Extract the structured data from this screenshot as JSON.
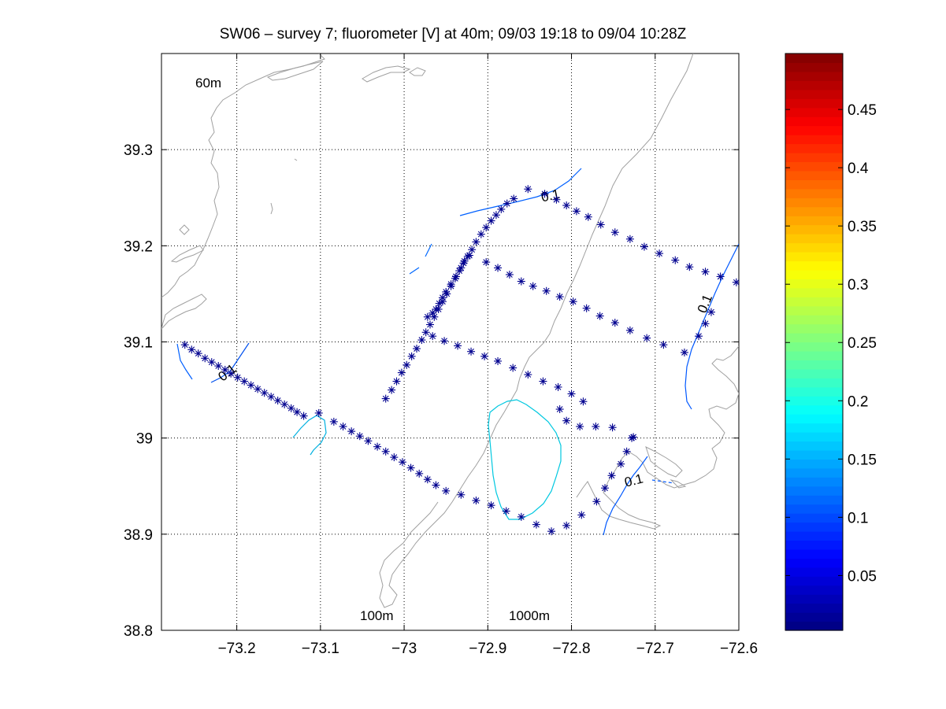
{
  "chart_data": {
    "type": "scatter",
    "title": "SW06 – survey 7; fluorometer [V] at 40m; 09/03 19:18 to 09/04 10:28Z",
    "xlabel": "",
    "ylabel": "",
    "xlim": [
      -73.29,
      -72.6
    ],
    "ylim": [
      38.8,
      39.4
    ],
    "xticks": [
      -73.2,
      -73.1,
      -73.0,
      -72.9,
      -72.8,
      -72.7,
      -72.6
    ],
    "xtick_labels": [
      "−73.2",
      "−73.1",
      "−73",
      "−72.9",
      "−72.8",
      "−72.7",
      "−72.6"
    ],
    "yticks": [
      38.8,
      38.9,
      39.0,
      39.1,
      39.2,
      39.3
    ],
    "ytick_labels": [
      "38.8",
      "38.9",
      "39",
      "39.1",
      "39.2",
      "39.3"
    ],
    "grid": true,
    "marker": "asterisk",
    "marker_color": "#00008f",
    "stations": [
      [
        -73.262,
        39.097
      ],
      [
        -73.254,
        39.092
      ],
      [
        -73.246,
        39.088
      ],
      [
        -73.238,
        39.083
      ],
      [
        -73.23,
        39.079
      ],
      [
        -73.222,
        39.075
      ],
      [
        -73.214,
        39.071
      ],
      [
        -73.207,
        39.067
      ],
      [
        -73.199,
        39.063
      ],
      [
        -73.191,
        39.059
      ],
      [
        -73.183,
        39.055
      ],
      [
        -73.175,
        39.051
      ],
      [
        -73.167,
        39.047
      ],
      [
        -73.159,
        39.043
      ],
      [
        -73.151,
        39.039
      ],
      [
        -73.143,
        39.035
      ],
      [
        -73.135,
        39.031
      ],
      [
        -73.128,
        39.027
      ],
      [
        -73.12,
        39.023
      ],
      [
        -73.102,
        39.026
      ],
      [
        -73.084,
        39.017
      ],
      [
        -73.073,
        39.012
      ],
      [
        -73.063,
        39.007
      ],
      [
        -73.053,
        39.002
      ],
      [
        -73.043,
        38.997
      ],
      [
        -73.032,
        38.991
      ],
      [
        -73.022,
        38.986
      ],
      [
        -73.012,
        38.98
      ],
      [
        -73.002,
        38.975
      ],
      [
        -72.992,
        38.969
      ],
      [
        -72.982,
        38.963
      ],
      [
        -72.972,
        38.957
      ],
      [
        -72.962,
        38.951
      ],
      [
        -72.95,
        38.945
      ],
      [
        -72.932,
        38.941
      ],
      [
        -72.914,
        38.935
      ],
      [
        -72.896,
        38.93
      ],
      [
        -72.878,
        38.924
      ],
      [
        -72.86,
        38.918
      ],
      [
        -72.842,
        38.91
      ],
      [
        -72.824,
        38.903
      ],
      [
        -72.806,
        38.909
      ],
      [
        -72.788,
        38.92
      ],
      [
        -72.77,
        38.934
      ],
      [
        -72.76,
        38.948
      ],
      [
        -72.752,
        38.961
      ],
      [
        -72.741,
        38.973
      ],
      [
        -72.734,
        38.986
      ],
      [
        -72.728,
        39.0
      ],
      [
        -73.022,
        39.041
      ],
      [
        -73.015,
        39.05
      ],
      [
        -73.009,
        39.059
      ],
      [
        -73.003,
        39.068
      ],
      [
        -72.997,
        39.076
      ],
      [
        -72.991,
        39.085
      ],
      [
        -72.985,
        39.093
      ],
      [
        -72.979,
        39.102
      ],
      [
        -72.974,
        39.11
      ],
      [
        -72.969,
        39.118
      ],
      [
        -72.964,
        39.126
      ],
      [
        -72.959,
        39.134
      ],
      [
        -72.954,
        39.142
      ],
      [
        -72.949,
        39.15
      ],
      [
        -72.944,
        39.158
      ],
      [
        -72.939,
        39.166
      ],
      [
        -72.934,
        39.174
      ],
      [
        -72.929,
        39.182
      ],
      [
        -72.924,
        39.189
      ],
      [
        -72.919,
        39.196
      ],
      [
        -72.914,
        39.204
      ],
      [
        -72.908,
        39.212
      ],
      [
        -72.902,
        39.219
      ],
      [
        -72.896,
        39.226
      ],
      [
        -72.89,
        39.232
      ],
      [
        -72.884,
        39.238
      ],
      [
        -72.877,
        39.244
      ],
      [
        -72.869,
        39.249
      ],
      [
        -72.972,
        39.126
      ],
      [
        -72.966,
        39.13
      ],
      [
        -72.962,
        39.134
      ],
      [
        -72.958,
        39.14
      ],
      [
        -72.954,
        39.146
      ],
      [
        -72.95,
        39.152
      ],
      [
        -72.944,
        39.16
      ],
      [
        -72.938,
        39.168
      ],
      [
        -72.932,
        39.177
      ],
      [
        -72.928,
        39.184
      ],
      [
        -72.922,
        39.19
      ],
      [
        -72.852,
        39.259
      ],
      [
        -72.832,
        39.254
      ],
      [
        -72.818,
        39.248
      ],
      [
        -72.806,
        39.242
      ],
      [
        -72.794,
        39.236
      ],
      [
        -72.78,
        39.23
      ],
      [
        -72.765,
        39.222
      ],
      [
        -72.748,
        39.214
      ],
      [
        -72.73,
        39.207
      ],
      [
        -72.713,
        39.199
      ],
      [
        -72.695,
        39.192
      ],
      [
        -72.676,
        39.185
      ],
      [
        -72.659,
        39.178
      ],
      [
        -72.64,
        39.173
      ],
      [
        -72.622,
        39.168
      ],
      [
        -72.603,
        39.162
      ],
      [
        -72.633,
        39.131
      ],
      [
        -72.64,
        39.119
      ],
      [
        -72.648,
        39.106
      ],
      [
        -72.902,
        39.183
      ],
      [
        -72.888,
        39.177
      ],
      [
        -72.874,
        39.17
      ],
      [
        -72.86,
        39.163
      ],
      [
        -72.846,
        39.158
      ],
      [
        -72.83,
        39.153
      ],
      [
        -72.814,
        39.147
      ],
      [
        -72.798,
        39.142
      ],
      [
        -72.782,
        39.135
      ],
      [
        -72.766,
        39.127
      ],
      [
        -72.748,
        39.12
      ],
      [
        -72.73,
        39.112
      ],
      [
        -72.71,
        39.104
      ],
      [
        -72.69,
        39.097
      ],
      [
        -72.665,
        39.089
      ],
      [
        -72.966,
        39.106
      ],
      [
        -72.952,
        39.101
      ],
      [
        -72.936,
        39.096
      ],
      [
        -72.92,
        39.09
      ],
      [
        -72.904,
        39.085
      ],
      [
        -72.888,
        39.08
      ],
      [
        -72.87,
        39.073
      ],
      [
        -72.852,
        39.066
      ],
      [
        -72.834,
        39.059
      ],
      [
        -72.816,
        39.053
      ],
      [
        -72.8,
        39.046
      ],
      [
        -72.786,
        39.038
      ],
      [
        -72.814,
        39.03
      ],
      [
        -72.806,
        39.018
      ],
      [
        -72.79,
        39.012
      ],
      [
        -72.771,
        39.012
      ],
      [
        -72.751,
        39.011
      ],
      [
        -72.726,
        39.001
      ]
    ],
    "contour_labels": [
      "0.1",
      "0.1",
      "0.1",
      "0.1"
    ],
    "isobath_labels": [
      "60m",
      "100m",
      "1000m"
    ],
    "colorbar": {
      "colormap": "jet",
      "ticks": [
        0.05,
        0.1,
        0.15,
        0.2,
        0.25,
        0.3,
        0.35,
        0.4,
        0.45
      ],
      "tick_labels": [
        "0.05",
        "0.1",
        "0.15",
        "0.2",
        "0.25",
        "0.3",
        "0.35",
        "0.4",
        "0.45"
      ],
      "range": [
        0.003,
        0.498
      ]
    }
  }
}
